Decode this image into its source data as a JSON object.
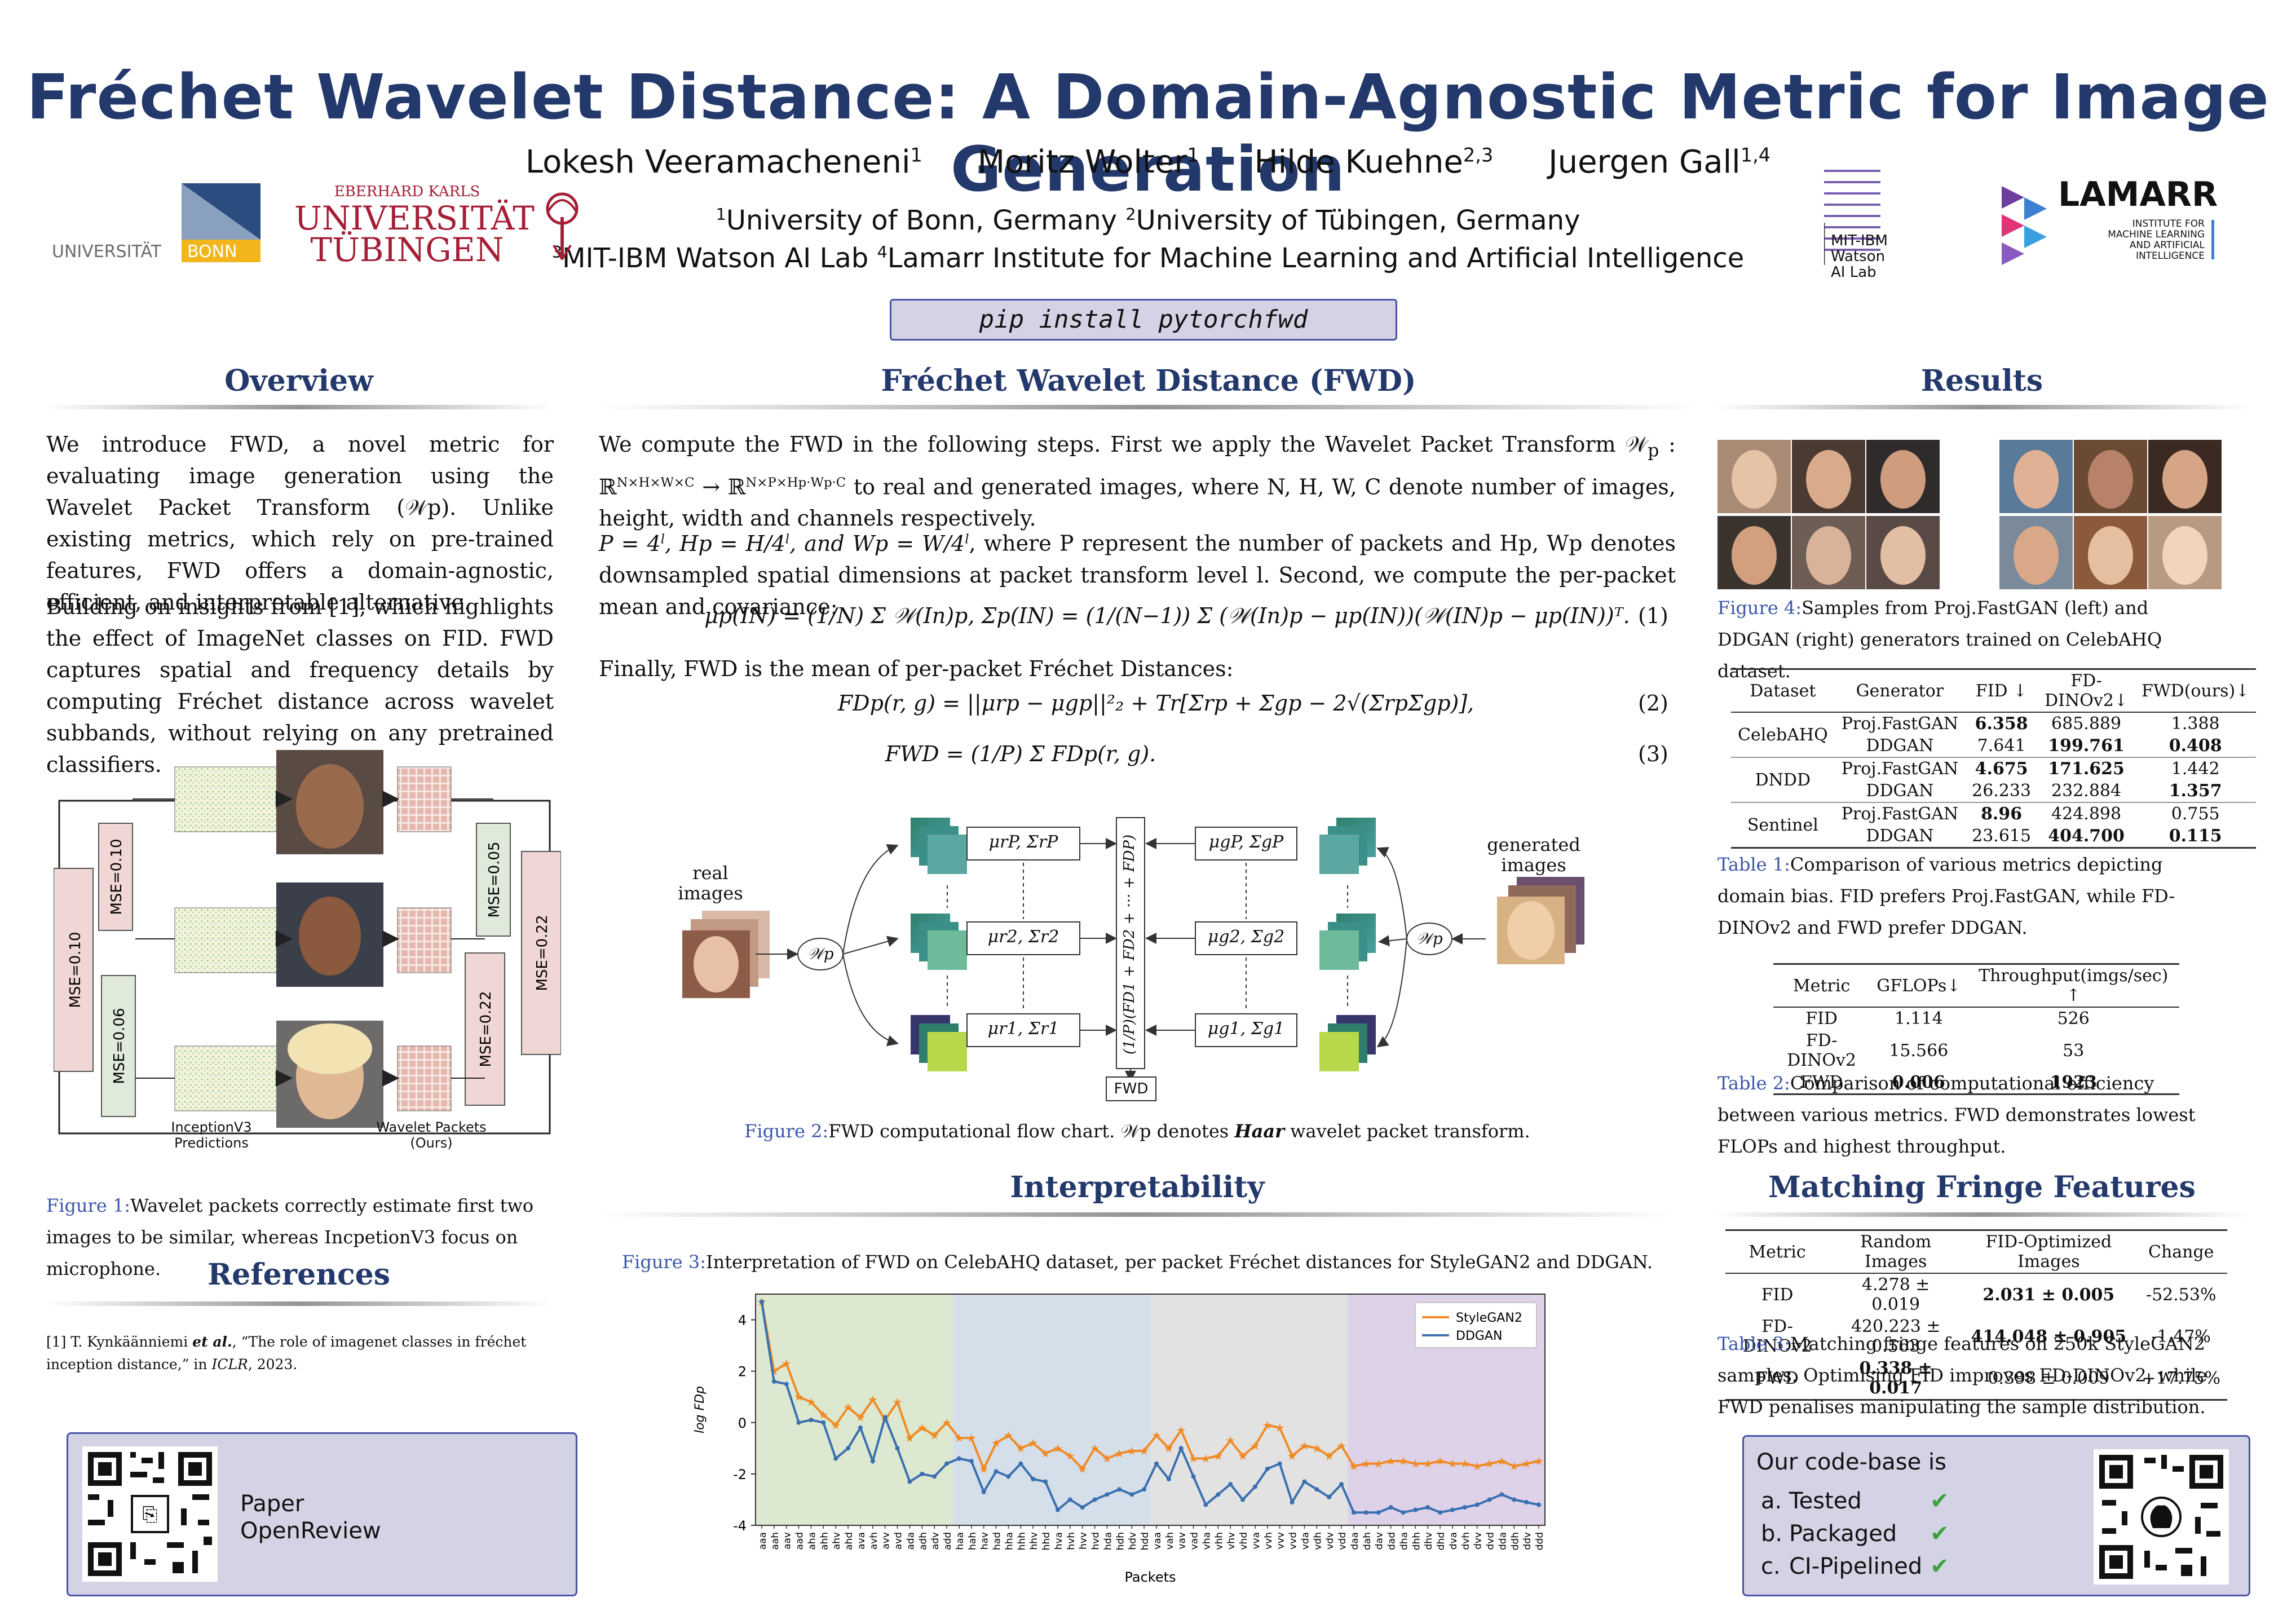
{
  "header": {
    "title": "Fréchet Wavelet Distance: A Domain-Agnostic Metric for Image Generation",
    "authors": [
      {
        "name": "Lokesh Veeramacheneni",
        "sup": "1"
      },
      {
        "name": "Moritz Wolter",
        "sup": "1"
      },
      {
        "name": "Hilde Kuehne",
        "sup": "2,3"
      },
      {
        "name": "Juergen Gall",
        "sup": "1,4"
      }
    ],
    "affiliations_line1": [
      {
        "sup": "1",
        "text": "University of Bonn, Germany "
      },
      {
        "sup": "2",
        "text": "University of Tübingen, Germany"
      }
    ],
    "affiliations_line2": [
      {
        "sup": "3",
        "text": "MIT-IBM Watson AI Lab "
      },
      {
        "sup": "4",
        "text": "Lamarr Institute for Machine Learning and Artificial Intelligence"
      }
    ],
    "pip": "pip install pytorchfwd"
  },
  "logos": {
    "bonn": {
      "left": "UNIVERSITÄT",
      "right": "BONN"
    },
    "tuebingen": {
      "line1": "EBERHARD KARLS",
      "line2": "UNIVERSITÄT",
      "line3": "TÜBINGEN"
    },
    "mit_ibm": {
      "line1": "MIT-IBM",
      "line2": "Watson",
      "line3": "AI Lab"
    },
    "lamarr": {
      "name": "LAMARR",
      "line1": "INSTITUTE FOR",
      "line2": "MACHINE LEARNING",
      "line3": "AND ARTIFICIAL",
      "line4": "INTELLIGENCE"
    }
  },
  "overview": {
    "heading": "Overview",
    "p1": "We introduce FWD, a novel metric for evaluating image generation using the Wavelet Packet Transform (𝒲p). Unlike existing metrics, which rely on pre-trained features, FWD offers a domain-agnostic, efficient, and interpretable alternative.",
    "p2": "Building on insights from [1], which highlights the effect of ImageNet classes on FID. FWD captures spatial and frequency details by computing Fréchet distance across wavelet subbands, without relying on any pretrained classifiers.",
    "fig1": {
      "mse": [
        "MSE=0.10",
        "MSE=0.10",
        "MSE=0.06",
        "MSE=0.05",
        "MSE=0.22",
        "MSE=0.22"
      ],
      "label_left_1": "InceptionV3",
      "label_left_2": "Predictions",
      "label_right_1": "Wavelet Packets",
      "label_right_2": "(Ours)"
    },
    "fig1_caption_label": "Figure 1:",
    "fig1_caption": "Wavelet packets correctly estimate first two images to be similar, whereas IncpetionV3 focus on microphone."
  },
  "references": {
    "heading": "References",
    "ref1_num": "[1]",
    "ref1_authors": "T. Kynkäänniemi ",
    "ref1_etal": "et al.",
    "ref1_text": ", “The role of imagenet classes in fréchet inception distance,” in ",
    "ref1_venue": "ICLR",
    "ref1_year": ", 2023."
  },
  "paper_box": {
    "line1": "Paper",
    "line2": "OpenReview"
  },
  "fwd": {
    "heading": "Fréchet Wavelet Distance (FWD)",
    "p1a": "We compute the FWD in the following steps. First we apply the Wavelet Packet Transform 𝒲",
    "p1b": "p",
    "p1c": " : ℝ",
    "p1d": "N×H×W×C",
    "p1e": " → ℝ",
    "p1f": "N×P×Hp·Wp·C",
    "p1g": " to real and generated images, where N, H, W, C denote number of images, height, width and channels respectively.",
    "p2a": "P = 4",
    "p2b": "l",
    "p2c": ", Hp = H/4",
    "p2d": "l",
    "p2e": ", and Wp = W/4",
    "p2f": "l",
    "p2g": ", where P represent the number of packets and Hp, Wp denotes downsampled spatial dimensions at packet transform level l. Second, we compute the per-packet mean and covariance:",
    "eq1": "μp(IN) = (1/N) Σ 𝒲(In)p,    Σp(IN) = (1/(N−1)) Σ (𝒲(In)p − μp(IN))(𝒲(IN)p − μp(IN))ᵀ.",
    "eq1_num": "(1)",
    "p3": "Finally, FWD is the mean of per-packet Fréchet Distances:",
    "eq2": "FDp(r, g) = ||μrp − μgp||²₂ + Tr[Σrp + Σgp − 2√(ΣrpΣgp)],",
    "eq2_num": "(2)",
    "eq3": "FWD = (1/P) Σ FDp(r, g).",
    "eq3_num": "(3)",
    "flow": {
      "real_1": "real",
      "real_2": "images",
      "gen_1": "generated",
      "gen_2": "images",
      "wp": "𝒲p",
      "mu_r": [
        "μrP, ΣrP",
        "μr2, Σr2",
        "μr1, Σr1"
      ],
      "mu_g": [
        "μgP, ΣgP",
        "μg2, Σg2",
        "μg1, Σg1"
      ],
      "center": "(1/P)(FD1 + FD2 + ··· + FDP)",
      "fwd": "FWD"
    },
    "fig2_caption_label": "Figure 2:",
    "fig2_caption_a": "FWD computational flow chart. 𝒲p denotes ",
    "fig2_caption_b": "Haar",
    "fig2_caption_c": " wavelet packet transform."
  },
  "interpretability": {
    "heading": "Interpretability",
    "fig3_caption_label": "Figure 3:",
    "fig3_caption": "Interpretation of FWD on CelebAHQ dataset, per packet Fréchet distances for StyleGAN2 and DDGAN."
  },
  "chart_data": {
    "type": "line",
    "title": "",
    "xlabel": "Packets",
    "ylabel": "log FDp",
    "ylim": [
      -4,
      5
    ],
    "yticks": [
      -4,
      -2,
      0,
      2,
      4
    ],
    "legend": "top-right",
    "x": [
      "aaa",
      "aah",
      "aav",
      "aad",
      "aha",
      "ahh",
      "ahv",
      "ahd",
      "ava",
      "avh",
      "avv",
      "avd",
      "ada",
      "adh",
      "adv",
      "add",
      "haa",
      "hah",
      "hav",
      "had",
      "hha",
      "hhh",
      "hhv",
      "hhd",
      "hva",
      "hvh",
      "hvv",
      "hvd",
      "hda",
      "hdh",
      "hdv",
      "hdd",
      "vaa",
      "vah",
      "vav",
      "vad",
      "vha",
      "vhh",
      "vhv",
      "vhd",
      "vva",
      "vvh",
      "vvv",
      "vvd",
      "vda",
      "vdh",
      "vdv",
      "vdd",
      "daa",
      "dah",
      "dav",
      "dad",
      "dha",
      "dhh",
      "dhv",
      "dhd",
      "dva",
      "dvh",
      "dvv",
      "dvd",
      "dda",
      "ddh",
      "ddv",
      "ddd"
    ],
    "bands": [
      {
        "from": 0,
        "to": 15,
        "color": "#dce8d0"
      },
      {
        "from": 16,
        "to": 31,
        "color": "#d5dfea"
      },
      {
        "from": 32,
        "to": 47,
        "color": "#e2e2e2"
      },
      {
        "from": 48,
        "to": 63,
        "color": "#ddd2e8"
      }
    ],
    "series": [
      {
        "name": "StyleGAN2",
        "color": "#f08a24",
        "values": [
          4.7,
          2.0,
          2.3,
          1.0,
          0.8,
          0.3,
          -0.1,
          0.6,
          0.2,
          0.9,
          0.1,
          0.8,
          -0.6,
          -0.2,
          -0.5,
          0.0,
          -0.6,
          -0.6,
          -1.8,
          -0.8,
          -0.5,
          -1.0,
          -0.8,
          -1.2,
          -1.0,
          -1.3,
          -1.8,
          -1.0,
          -1.4,
          -1.2,
          -1.1,
          -1.1,
          -0.5,
          -1.0,
          -0.3,
          -1.4,
          -1.4,
          -1.3,
          -0.7,
          -1.3,
          -0.9,
          -0.1,
          -0.2,
          -1.3,
          -0.9,
          -1.0,
          -1.3,
          -0.9,
          -1.7,
          -1.6,
          -1.6,
          -1.5,
          -1.5,
          -1.6,
          -1.6,
          -1.5,
          -1.6,
          -1.6,
          -1.7,
          -1.6,
          -1.5,
          -1.7,
          -1.6,
          -1.5
        ]
      },
      {
        "name": "DDGAN",
        "color": "#3a6fb0",
        "values": [
          4.7,
          1.6,
          1.5,
          0.0,
          0.1,
          0.0,
          -1.4,
          -1.0,
          -0.2,
          -1.5,
          0.2,
          -1.0,
          -2.3,
          -2.0,
          -2.1,
          -1.6,
          -1.4,
          -1.5,
          -2.7,
          -1.9,
          -2.1,
          -1.6,
          -2.2,
          -2.3,
          -3.4,
          -3.0,
          -3.3,
          -3.0,
          -2.8,
          -2.6,
          -2.8,
          -2.6,
          -1.6,
          -2.2,
          -1.0,
          -2.1,
          -3.2,
          -2.8,
          -2.4,
          -3.0,
          -2.5,
          -1.8,
          -1.6,
          -3.1,
          -2.3,
          -2.6,
          -2.9,
          -2.4,
          -3.5,
          -3.5,
          -3.5,
          -3.3,
          -3.5,
          -3.4,
          -3.3,
          -3.5,
          -3.4,
          -3.3,
          -3.2,
          -3.0,
          -2.8,
          -3.0,
          -3.1,
          -3.2
        ]
      }
    ]
  },
  "results": {
    "heading": "Results",
    "fig4_caption_label": "Figure 4:",
    "fig4_caption": "Samples from Proj.FastGAN (left) and DDGAN (right) generators trained on CelebAHQ dataset.",
    "table1": {
      "headers": [
        "Dataset",
        "Generator",
        "FID ↓",
        "FD-DINOv2↓",
        "FWD(ours)↓"
      ],
      "groups": [
        {
          "dataset": "CelebAHQ",
          "rows": [
            {
              "gen": "Proj.FastGAN",
              "fid": "6.358",
              "fid_b": true,
              "dino": "685.889",
              "dino_b": false,
              "fwd": "1.388",
              "fwd_b": false
            },
            {
              "gen": "DDGAN",
              "fid": "7.641",
              "fid_b": false,
              "dino": "199.761",
              "dino_b": true,
              "fwd": "0.408",
              "fwd_b": true
            }
          ]
        },
        {
          "dataset": "DNDD",
          "rows": [
            {
              "gen": "Proj.FastGAN",
              "fid": "4.675",
              "fid_b": true,
              "dino": "171.625",
              "dino_b": true,
              "fwd": "1.442",
              "fwd_b": false
            },
            {
              "gen": "DDGAN",
              "fid": "26.233",
              "fid_b": false,
              "dino": "232.884",
              "dino_b": false,
              "fwd": "1.357",
              "fwd_b": true
            }
          ]
        },
        {
          "dataset": "Sentinel",
          "rows": [
            {
              "gen": "Proj.FastGAN",
              "fid": "8.96",
              "fid_b": true,
              "dino": "424.898",
              "dino_b": false,
              "fwd": "0.755",
              "fwd_b": false
            },
            {
              "gen": "DDGAN",
              "fid": "23.615",
              "fid_b": false,
              "dino": "404.700",
              "dino_b": true,
              "fwd": "0.115",
              "fwd_b": true
            }
          ]
        }
      ],
      "caption_label": "Table 1:",
      "caption": "Comparison of various metrics depicting domain bias. FID prefers Proj.FastGAN, while FD-DINOv2 and FWD prefer DDGAN."
    },
    "table2": {
      "headers": [
        "Metric",
        "GFLOPs↓",
        "Throughput(imgs/sec) ↑"
      ],
      "rows": [
        {
          "metric": "FID",
          "gflops": "1.114",
          "tp": "526",
          "b": false
        },
        {
          "metric": "FD-DINOv2",
          "gflops": "15.566",
          "tp": "53",
          "b": false
        },
        {
          "metric": "FWD",
          "gflops": "0.006",
          "tp": "1923",
          "b": true
        }
      ],
      "caption_label": "Table 2:",
      "caption": "Comparison of computational efficiency between various metrics. FWD demonstrates lowest FLOPs and highest throughput."
    }
  },
  "fringe": {
    "heading": "Matching Fringe Features",
    "table3": {
      "headers": [
        "Metric",
        "Random Images",
        "FID-Optimized Images",
        "Change"
      ],
      "rows": [
        {
          "metric": "FID",
          "random": "4.278 ± 0.019",
          "random_b": false,
          "opt": "2.031 ± 0.005",
          "opt_b": true,
          "change": "-52.53%"
        },
        {
          "metric": "FD-DINOv2",
          "random": "420.223 ± 0.563",
          "random_b": false,
          "opt": "414.048 ± 0.905",
          "opt_b": true,
          "change": "-1.47%"
        },
        {
          "metric": "FWD",
          "random": "0.338 ± 0.017",
          "random_b": true,
          "opt": "0.398 ± 0.009",
          "opt_b": false,
          "change": "+17.75%"
        }
      ],
      "caption_label": "Table 3:",
      "caption": "Matching fringe features on 250k StyleGAN2 samples. Optimising FID improves FD-DINOv2, while FWD penalises manipulating the sample distribution."
    }
  },
  "codebase": {
    "title": "Our code-base is",
    "items": [
      {
        "letter": "a.",
        "text": "Tested"
      },
      {
        "letter": "b.",
        "text": "Packaged"
      },
      {
        "letter": "c.",
        "text": "CI-Pipelined"
      }
    ],
    "check": "✔"
  }
}
